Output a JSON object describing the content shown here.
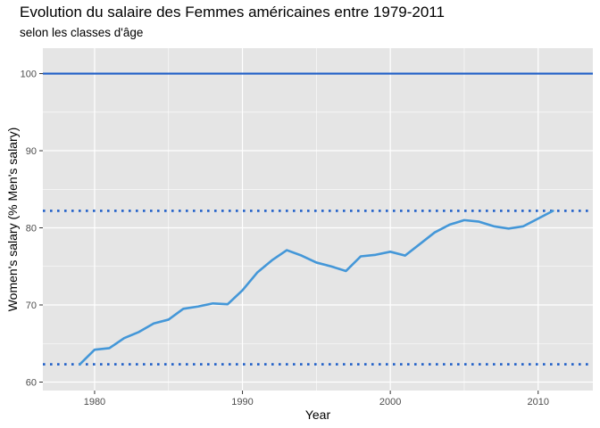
{
  "chart_data": {
    "type": "line",
    "title": "Evolution du salaire des Femmes américaines entre 1979-2011",
    "subtitle": "selon les classes d'âge",
    "xlabel": "Year",
    "ylabel": "Women's salary (% Men's salary)",
    "xlim": [
      1976.5,
      2013.7
    ],
    "ylim": [
      58.9,
      103.3
    ],
    "x_ticks": [
      1980,
      1990,
      2000,
      2010
    ],
    "y_ticks": [
      60,
      70,
      80,
      90,
      100
    ],
    "grid": true,
    "x": [
      1979,
      1980,
      1981,
      1982,
      1983,
      1984,
      1985,
      1986,
      1987,
      1988,
      1989,
      1990,
      1991,
      1992,
      1993,
      1994,
      1995,
      1996,
      1997,
      1998,
      1999,
      2000,
      2001,
      2002,
      2003,
      2004,
      2005,
      2006,
      2007,
      2008,
      2009,
      2010,
      2011
    ],
    "series": [
      {
        "color": "#4497d8",
        "values": [
          62.3,
          64.2,
          64.4,
          65.7,
          66.5,
          67.6,
          68.1,
          69.5,
          69.8,
          70.2,
          70.1,
          71.9,
          74.2,
          75.8,
          77.1,
          76.4,
          75.5,
          75.0,
          74.4,
          76.3,
          76.5,
          76.9,
          76.4,
          77.9,
          79.4,
          80.4,
          81.0,
          80.8,
          80.2,
          79.9,
          80.2,
          81.2,
          82.2
        ]
      }
    ],
    "reference_lines": [
      {
        "y": 100,
        "style": "solid",
        "color": "#1f5fc8"
      },
      {
        "y": 82.2,
        "style": "dotted",
        "color": "#1f5fc8"
      },
      {
        "y": 62.3,
        "style": "dotted",
        "color": "#1f5fc8"
      }
    ],
    "colors": {
      "panel_background": "#e5e5e5",
      "grid": "#ffffff"
    }
  }
}
